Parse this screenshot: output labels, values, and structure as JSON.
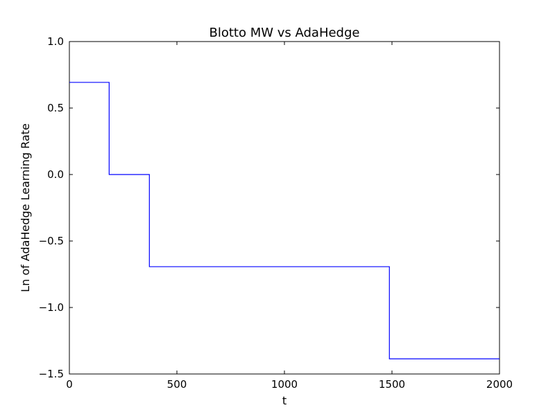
{
  "chart_data": {
    "type": "line",
    "title": "Blotto MW vs AdaHedge",
    "xlabel": "t",
    "ylabel": "Ln of AdaHedge Learning Rate",
    "xlim": [
      0,
      2000
    ],
    "ylim": [
      -1.5,
      1.0
    ],
    "xticks": [
      0,
      500,
      1000,
      1500,
      2000
    ],
    "xtick_labels": [
      "0",
      "500",
      "1000",
      "1500",
      "2000"
    ],
    "yticks": [
      -1.5,
      -1.0,
      -0.5,
      0.0,
      0.5,
      1.0
    ],
    "ytick_labels": [
      "−1.5",
      "−1.0",
      "−0.5",
      "0.0",
      "0.5",
      "1.0"
    ],
    "grid": false,
    "line_color": "#0000ff",
    "series": [
      {
        "x": [
          0,
          185,
          185,
          372,
          372,
          1488,
          1488,
          2000
        ],
        "y": [
          0.693,
          0.693,
          0.0,
          0.0,
          -0.693,
          -0.693,
          -1.386,
          -1.386
        ]
      }
    ]
  }
}
